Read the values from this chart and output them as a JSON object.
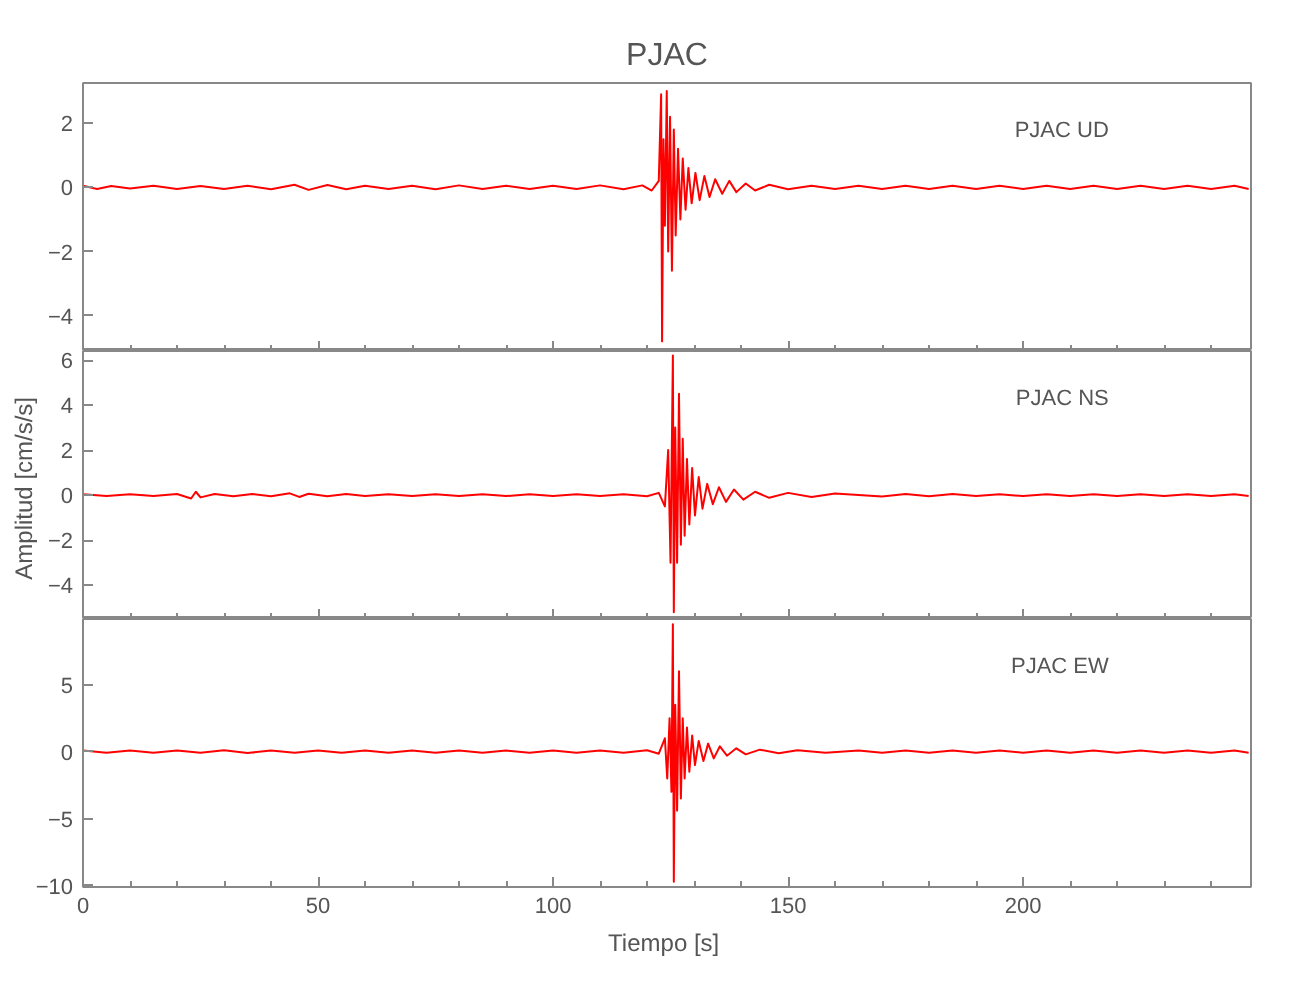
{
  "chart_data": [
    {
      "type": "line",
      "title": "PJAC",
      "annotations": [
        "PJAC   UD"
      ],
      "color": "#ff0000",
      "grid": false,
      "tick_labels": "y",
      "xlim": [
        0,
        248.5
      ],
      "xticks": [
        0,
        50,
        100,
        150,
        200
      ],
      "ylim": [
        -5.1,
        3.25
      ],
      "yticks": [
        -4,
        -2,
        0,
        2
      ],
      "x": [
        0,
        3,
        6,
        10,
        15,
        20,
        25,
        30,
        35,
        40,
        45,
        48,
        52,
        56,
        60,
        65,
        70,
        75,
        80,
        85,
        90,
        95,
        100,
        105,
        110,
        115,
        119,
        121,
        122.5,
        123,
        123.2,
        123.5,
        123.8,
        124.2,
        124.5,
        124.9,
        125.3,
        125.7,
        126.1,
        126.6,
        127.1,
        127.6,
        128.2,
        128.8,
        129.5,
        130.3,
        131.2,
        132.2,
        133.3,
        134.5,
        136,
        137.5,
        139,
        141,
        143,
        146,
        150,
        155,
        160,
        165,
        170,
        175,
        180,
        185,
        190,
        195,
        200,
        205,
        210,
        215,
        220,
        225,
        230,
        235,
        240,
        245,
        248
      ],
      "values": [
        0.05,
        -0.05,
        0.04,
        -0.04,
        0.05,
        -0.05,
        0.04,
        -0.05,
        0.05,
        -0.06,
        0.08,
        -0.08,
        0.07,
        -0.06,
        0.05,
        -0.05,
        0.05,
        -0.06,
        0.06,
        -0.05,
        0.05,
        -0.05,
        0.05,
        -0.05,
        0.06,
        -0.06,
        0.06,
        -0.1,
        0.2,
        2.9,
        -4.8,
        1.5,
        -1.2,
        3.0,
        -2.0,
        2.2,
        -2.6,
        1.8,
        -1.5,
        1.2,
        -1.0,
        0.9,
        -0.7,
        0.6,
        -0.5,
        0.45,
        -0.4,
        0.35,
        -0.3,
        0.25,
        -0.2,
        0.2,
        -0.15,
        0.12,
        -0.1,
        0.08,
        -0.06,
        0.05,
        -0.05,
        0.05,
        -0.05,
        0.05,
        -0.05,
        0.05,
        -0.05,
        0.05,
        -0.05,
        0.05,
        -0.05,
        0.05,
        -0.05,
        0.05,
        -0.05,
        0.05,
        -0.05,
        0.05,
        -0.05
      ]
    },
    {
      "type": "line",
      "ylabel": "Amplitud  [cm/s/s]",
      "annotations": [
        "PJAC   NS"
      ],
      "color": "#ff0000",
      "grid": false,
      "tick_labels": "y",
      "xlim": [
        0,
        248.5
      ],
      "xticks": [
        0,
        50,
        100,
        150,
        200
      ],
      "ylim": [
        -5.5,
        6.4
      ],
      "yticks": [
        -4,
        -2,
        0,
        2,
        4,
        6
      ],
      "x": [
        0,
        5,
        10,
        15,
        20,
        23,
        24,
        25,
        28,
        32,
        36,
        40,
        44,
        46,
        48,
        52,
        56,
        60,
        65,
        70,
        75,
        80,
        85,
        90,
        95,
        100,
        105,
        110,
        115,
        120,
        122.5,
        123.8,
        124.5,
        125,
        125.5,
        125.7,
        126,
        126.4,
        126.8,
        127.2,
        127.6,
        128,
        128.5,
        129,
        129.6,
        130.2,
        131,
        131.8,
        132.8,
        134,
        135.3,
        136.8,
        138.5,
        140.5,
        143,
        146,
        150,
        155,
        160,
        170,
        175,
        180,
        185,
        190,
        195,
        200,
        205,
        210,
        215,
        220,
        225,
        230,
        235,
        240,
        245,
        248
      ],
      "values": [
        0.04,
        -0.04,
        0.04,
        -0.04,
        0.05,
        -0.15,
        0.15,
        -0.1,
        0.05,
        -0.05,
        0.05,
        -0.05,
        0.08,
        -0.08,
        0.06,
        -0.05,
        0.05,
        -0.04,
        0.04,
        -0.04,
        0.04,
        -0.04,
        0.04,
        -0.04,
        0.04,
        -0.04,
        0.04,
        -0.04,
        0.04,
        -0.05,
        0.1,
        -0.5,
        2.0,
        -3.0,
        6.2,
        -5.2,
        3.0,
        -3.0,
        4.5,
        -2.2,
        2.5,
        -1.8,
        1.6,
        -1.3,
        1.2,
        -0.9,
        0.8,
        -0.6,
        0.5,
        -0.4,
        0.35,
        -0.3,
        0.25,
        -0.2,
        0.15,
        -0.12,
        0.1,
        -0.08,
        0.07,
        -0.06,
        0.05,
        -0.05,
        0.05,
        -0.04,
        0.04,
        -0.04,
        0.04,
        -0.04,
        0.04,
        -0.04,
        0.04,
        -0.04,
        0.04,
        -0.04,
        0.04,
        -0.04
      ]
    },
    {
      "type": "line",
      "xlabel": "Tiempo  [s]",
      "annotations": [
        "PJAC   EW"
      ],
      "color": "#ff0000",
      "grid": false,
      "xlim": [
        0,
        248.5
      ],
      "xticks": [
        0,
        50,
        100,
        150,
        200
      ],
      "ylim": [
        -10.1,
        9.9
      ],
      "yticks": [
        -10,
        -5,
        0,
        5
      ],
      "x": [
        0,
        5,
        10,
        15,
        20,
        25,
        30,
        35,
        40,
        45,
        50,
        55,
        60,
        65,
        70,
        75,
        80,
        85,
        90,
        95,
        100,
        105,
        110,
        115,
        120,
        122.5,
        123.8,
        124.3,
        124.8,
        125.2,
        125.5,
        125.7,
        126,
        126.4,
        126.8,
        127.2,
        127.6,
        128,
        128.5,
        129,
        129.6,
        130.2,
        131,
        132,
        133,
        134.2,
        135.5,
        137,
        139,
        141,
        144,
        148,
        152,
        158,
        165,
        170,
        175,
        180,
        185,
        190,
        195,
        200,
        205,
        210,
        215,
        220,
        225,
        230,
        235,
        240,
        245,
        248
      ],
      "values": [
        0.08,
        -0.08,
        0.08,
        -0.08,
        0.08,
        -0.08,
        0.1,
        -0.1,
        0.08,
        -0.08,
        0.08,
        -0.08,
        0.08,
        -0.08,
        0.08,
        -0.08,
        0.08,
        -0.08,
        0.08,
        -0.08,
        0.08,
        -0.08,
        0.08,
        -0.08,
        0.1,
        -0.15,
        1.0,
        -2.0,
        2.5,
        -3.0,
        9.5,
        -9.7,
        3.5,
        -4.4,
        6.0,
        -3.5,
        2.5,
        -2.0,
        1.8,
        -1.5,
        1.2,
        -1.0,
        0.8,
        -0.7,
        0.6,
        -0.5,
        0.4,
        -0.3,
        0.25,
        -0.2,
        0.15,
        -0.12,
        0.1,
        -0.08,
        0.08,
        -0.08,
        0.08,
        -0.08,
        0.08,
        -0.08,
        0.08,
        -0.08,
        0.08,
        -0.08,
        0.08,
        -0.08,
        0.08,
        -0.08,
        0.08,
        -0.08,
        0.08,
        -0.08
      ]
    }
  ]
}
